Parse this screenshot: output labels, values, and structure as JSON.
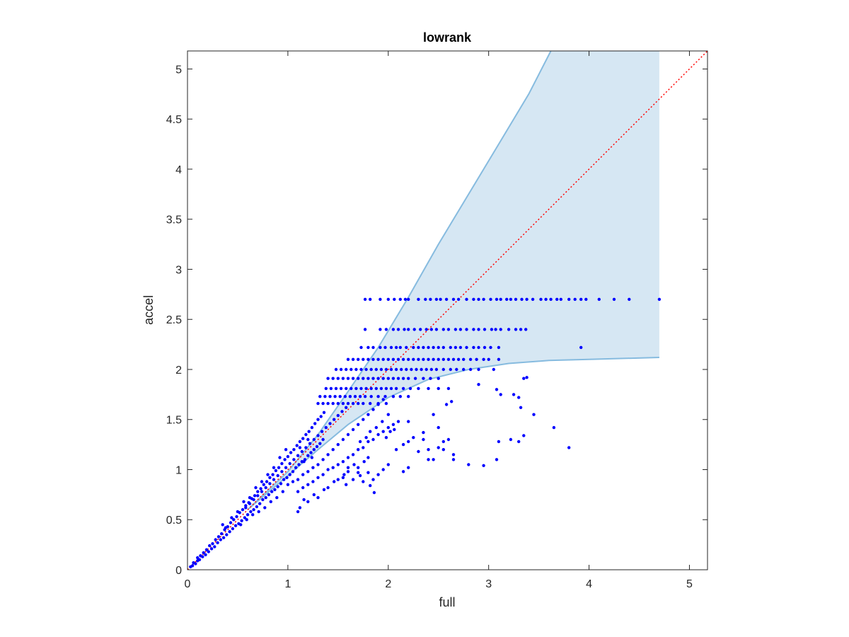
{
  "chart_data": {
    "type": "scatter",
    "title": "lowrank",
    "xlabel": "full",
    "ylabel": "accel",
    "xlim": [
      0,
      5.18
    ],
    "ylim": [
      0,
      5.18
    ],
    "xticks": [
      0,
      1,
      2,
      3,
      4,
      5
    ],
    "xtick_labels": [
      "0",
      "1",
      "2",
      "3",
      "4",
      "5"
    ],
    "yticks": [
      0,
      0.5,
      1,
      1.5,
      2,
      2.5,
      3,
      3.5,
      4,
      4.5,
      5
    ],
    "ytick_labels": [
      "0",
      "0.5",
      "1",
      "1.5",
      "2",
      "2.5",
      "3",
      "3.5",
      "4",
      "4.5",
      "5"
    ],
    "grid": false,
    "colors": {
      "points": "#0000ff",
      "band_fill": "#d6e7f3",
      "band_edge": "#86bbdf",
      "reference_line": "#ff0000",
      "axes": "#262626"
    },
    "band": {
      "upper": [
        [
          0.6,
          0.6
        ],
        [
          1.0,
          0.98
        ],
        [
          1.3,
          1.35
        ],
        [
          1.6,
          1.78
        ],
        [
          1.9,
          2.22
        ],
        [
          2.2,
          2.72
        ],
        [
          2.5,
          3.25
        ],
        [
          2.8,
          3.75
        ],
        [
          3.1,
          4.25
        ],
        [
          3.4,
          4.75
        ],
        [
          3.62,
          5.18
        ]
      ],
      "upper_cap": [
        [
          3.62,
          5.18
        ],
        [
          4.7,
          5.18
        ]
      ],
      "lower": [
        [
          0.6,
          0.6
        ],
        [
          1.0,
          0.94
        ],
        [
          1.3,
          1.2
        ],
        [
          1.6,
          1.45
        ],
        [
          2.0,
          1.72
        ],
        [
          2.4,
          1.9
        ],
        [
          2.8,
          2.0
        ],
        [
          3.2,
          2.06
        ],
        [
          3.6,
          2.09
        ],
        [
          4.0,
          2.1
        ],
        [
          4.7,
          2.12
        ]
      ]
    },
    "reference_line": {
      "from": [
        0,
        0
      ],
      "to": [
        5.18,
        5.18
      ],
      "style": "dotted"
    },
    "stripes": [
      {
        "y": 2.7,
        "xs": [
          1.77,
          1.82,
          1.92,
          2.0,
          2.06,
          2.12,
          2.17,
          2.2,
          2.3,
          2.37,
          2.42,
          2.48,
          2.52,
          2.58,
          2.65,
          2.7,
          2.78,
          2.85,
          2.9,
          2.95,
          3.02,
          3.08,
          3.12,
          3.18,
          3.22,
          3.27,
          3.33,
          3.38,
          3.44,
          3.52,
          3.57,
          3.62,
          3.68,
          3.72,
          3.8,
          3.86,
          3.92,
          3.97,
          4.1,
          4.25,
          4.4,
          4.7
        ]
      },
      {
        "y": 2.4,
        "xs": [
          1.77,
          1.92,
          1.98,
          2.05,
          2.1,
          2.16,
          2.2,
          2.26,
          2.32,
          2.38,
          2.43,
          2.48,
          2.55,
          2.6,
          2.67,
          2.72,
          2.78,
          2.85,
          2.9,
          2.96,
          3.03,
          3.07,
          3.12,
          3.2,
          3.27,
          3.32,
          3.37
        ]
      },
      {
        "y": 2.22,
        "xs": [
          1.73,
          1.8,
          1.85,
          1.92,
          1.97,
          2.03,
          2.08,
          2.12,
          2.18,
          2.25,
          2.3,
          2.35,
          2.4,
          2.45,
          2.5,
          2.55,
          2.62,
          2.67,
          2.72,
          2.78,
          2.85,
          2.9,
          2.96,
          3.02,
          3.1,
          3.92
        ]
      },
      {
        "y": 2.1,
        "xs": [
          1.6,
          1.65,
          1.7,
          1.75,
          1.8,
          1.85,
          1.9,
          1.95,
          2.0,
          2.05,
          2.1,
          2.15,
          2.2,
          2.25,
          2.3,
          2.35,
          2.4,
          2.45,
          2.5,
          2.55,
          2.6,
          2.65,
          2.7,
          2.75,
          2.82,
          2.88,
          2.95,
          3.0,
          3.1
        ]
      },
      {
        "y": 2.0,
        "xs": [
          1.48,
          1.53,
          1.58,
          1.63,
          1.68,
          1.73,
          1.78,
          1.83,
          1.88,
          1.93,
          1.98,
          2.03,
          2.08,
          2.13,
          2.18,
          2.23,
          2.28,
          2.33,
          2.38,
          2.43,
          2.48,
          2.55,
          2.62,
          2.68,
          2.75,
          2.82,
          2.9,
          3.05
        ]
      },
      {
        "y": 1.91,
        "xs": [
          1.4,
          1.45,
          1.5,
          1.55,
          1.6,
          1.65,
          1.7,
          1.75,
          1.8,
          1.85,
          1.9,
          1.95,
          2.0,
          2.05,
          2.1,
          2.15,
          2.2,
          2.27,
          2.35,
          2.42,
          2.5,
          3.35
        ]
      },
      {
        "y": 1.81,
        "xs": [
          1.38,
          1.43,
          1.48,
          1.53,
          1.58,
          1.63,
          1.68,
          1.73,
          1.78,
          1.83,
          1.88,
          1.93,
          1.98,
          2.03,
          2.08,
          2.15,
          2.22,
          2.3,
          2.4,
          2.5,
          2.6
        ]
      },
      {
        "y": 1.73,
        "xs": [
          1.32,
          1.37,
          1.42,
          1.47,
          1.52,
          1.57,
          1.62,
          1.67,
          1.72,
          1.77,
          1.83,
          1.9,
          1.97,
          2.05,
          2.12,
          2.2
        ]
      },
      {
        "y": 1.66,
        "xs": [
          1.3,
          1.35,
          1.4,
          1.45,
          1.5,
          1.55,
          1.6,
          1.65,
          1.7,
          1.75,
          1.82,
          1.9,
          1.98
        ]
      }
    ],
    "points": [
      [
        0.03,
        0.03
      ],
      [
        0.05,
        0.04
      ],
      [
        0.06,
        0.07
      ],
      [
        0.08,
        0.06
      ],
      [
        0.1,
        0.09
      ],
      [
        0.1,
        0.12
      ],
      [
        0.12,
        0.1
      ],
      [
        0.13,
        0.14
      ],
      [
        0.15,
        0.13
      ],
      [
        0.16,
        0.17
      ],
      [
        0.18,
        0.15
      ],
      [
        0.19,
        0.2
      ],
      [
        0.21,
        0.18
      ],
      [
        0.22,
        0.24
      ],
      [
        0.24,
        0.21
      ],
      [
        0.25,
        0.26
      ],
      [
        0.27,
        0.23
      ],
      [
        0.28,
        0.3
      ],
      [
        0.3,
        0.27
      ],
      [
        0.31,
        0.33
      ],
      [
        0.33,
        0.3
      ],
      [
        0.34,
        0.36
      ],
      [
        0.36,
        0.32
      ],
      [
        0.37,
        0.4
      ],
      [
        0.39,
        0.35
      ],
      [
        0.4,
        0.43
      ],
      [
        0.42,
        0.38
      ],
      [
        0.43,
        0.47
      ],
      [
        0.45,
        0.41
      ],
      [
        0.46,
        0.5
      ],
      [
        0.48,
        0.44
      ],
      [
        0.49,
        0.53
      ],
      [
        0.51,
        0.46
      ],
      [
        0.52,
        0.57
      ],
      [
        0.54,
        0.49
      ],
      [
        0.55,
        0.6
      ],
      [
        0.57,
        0.52
      ],
      [
        0.58,
        0.64
      ],
      [
        0.6,
        0.55
      ],
      [
        0.61,
        0.67
      ],
      [
        0.63,
        0.58
      ],
      [
        0.64,
        0.71
      ],
      [
        0.66,
        0.6
      ],
      [
        0.67,
        0.74
      ],
      [
        0.69,
        0.63
      ],
      [
        0.7,
        0.78
      ],
      [
        0.72,
        0.66
      ],
      [
        0.73,
        0.81
      ],
      [
        0.75,
        0.7
      ],
      [
        0.76,
        0.85
      ],
      [
        0.78,
        0.72
      ],
      [
        0.79,
        0.88
      ],
      [
        0.81,
        0.75
      ],
      [
        0.82,
        0.92
      ],
      [
        0.84,
        0.78
      ],
      [
        0.85,
        0.95
      ],
      [
        0.87,
        0.8
      ],
      [
        0.88,
        0.99
      ],
      [
        0.9,
        0.83
      ],
      [
        0.91,
        1.02
      ],
      [
        0.93,
        0.86
      ],
      [
        0.94,
        1.06
      ],
      [
        0.96,
        0.9
      ],
      [
        0.97,
        1.1
      ],
      [
        0.99,
        0.92
      ],
      [
        1.0,
        1.13
      ],
      [
        1.02,
        0.95
      ],
      [
        1.03,
        1.17
      ],
      [
        1.05,
        0.98
      ],
      [
        1.06,
        1.2
      ],
      [
        1.08,
        1.02
      ],
      [
        1.09,
        1.24
      ],
      [
        1.11,
        1.05
      ],
      [
        1.12,
        1.28
      ],
      [
        1.14,
        1.08
      ],
      [
        1.15,
        1.31
      ],
      [
        1.17,
        1.1
      ],
      [
        1.18,
        1.35
      ],
      [
        1.2,
        1.14
      ],
      [
        1.21,
        1.38
      ],
      [
        1.23,
        1.17
      ],
      [
        1.24,
        1.42
      ],
      [
        1.26,
        1.2
      ],
      [
        1.27,
        1.46
      ],
      [
        1.29,
        1.23
      ],
      [
        1.3,
        1.5
      ],
      [
        1.32,
        1.26
      ],
      [
        1.33,
        1.53
      ],
      [
        1.35,
        1.3
      ],
      [
        1.36,
        1.57
      ],
      [
        0.35,
        0.45
      ],
      [
        0.38,
        0.42
      ],
      [
        0.44,
        0.52
      ],
      [
        0.5,
        0.58
      ],
      [
        0.53,
        0.45
      ],
      [
        0.56,
        0.68
      ],
      [
        0.59,
        0.5
      ],
      [
        0.62,
        0.72
      ],
      [
        0.65,
        0.55
      ],
      [
        0.68,
        0.82
      ],
      [
        0.71,
        0.58
      ],
      [
        0.74,
        0.88
      ],
      [
        0.77,
        0.62
      ],
      [
        0.8,
        0.95
      ],
      [
        0.83,
        0.68
      ],
      [
        0.86,
        1.02
      ],
      [
        0.89,
        0.72
      ],
      [
        0.92,
        1.12
      ],
      [
        0.95,
        0.78
      ],
      [
        0.98,
        1.2
      ],
      [
        0.58,
        0.62
      ],
      [
        0.62,
        0.66
      ],
      [
        0.66,
        0.7
      ],
      [
        0.7,
        0.74
      ],
      [
        0.74,
        0.78
      ],
      [
        0.78,
        0.82
      ],
      [
        0.82,
        0.86
      ],
      [
        0.86,
        0.9
      ],
      [
        0.9,
        0.94
      ],
      [
        0.94,
        0.98
      ],
      [
        0.98,
        1.02
      ],
      [
        1.02,
        1.06
      ],
      [
        1.06,
        1.1
      ],
      [
        1.1,
        1.14
      ],
      [
        1.14,
        1.18
      ],
      [
        1.18,
        1.22
      ],
      [
        1.22,
        1.26
      ],
      [
        1.26,
        1.3
      ],
      [
        1.3,
        1.34
      ],
      [
        1.34,
        1.38
      ],
      [
        1.38,
        1.42
      ],
      [
        1.42,
        1.46
      ],
      [
        1.46,
        1.5
      ],
      [
        1.5,
        1.54
      ],
      [
        1.54,
        1.58
      ],
      [
        1.58,
        1.62
      ],
      [
        1.12,
        1.22
      ],
      [
        1.16,
        1.08
      ],
      [
        1.2,
        1.3
      ],
      [
        1.24,
        1.12
      ],
      [
        1.0,
        0.85
      ],
      [
        1.05,
        0.88
      ],
      [
        1.1,
        0.9
      ],
      [
        1.15,
        0.95
      ],
      [
        1.2,
        0.98
      ],
      [
        1.25,
        1.02
      ],
      [
        1.3,
        1.05
      ],
      [
        1.35,
        1.1
      ],
      [
        1.4,
        1.15
      ],
      [
        1.45,
        1.2
      ],
      [
        1.5,
        1.25
      ],
      [
        1.55,
        1.3
      ],
      [
        1.6,
        1.35
      ],
      [
        1.65,
        1.4
      ],
      [
        1.7,
        1.45
      ],
      [
        1.75,
        1.5
      ],
      [
        1.8,
        1.55
      ],
      [
        1.85,
        1.6
      ],
      [
        1.9,
        1.65
      ],
      [
        1.95,
        1.7
      ],
      [
        1.1,
        0.78
      ],
      [
        1.15,
        0.82
      ],
      [
        1.2,
        0.85
      ],
      [
        1.25,
        0.88
      ],
      [
        1.3,
        0.92
      ],
      [
        1.35,
        0.95
      ],
      [
        1.4,
        1.0
      ],
      [
        1.45,
        1.02
      ],
      [
        1.5,
        1.05
      ],
      [
        1.55,
        1.08
      ],
      [
        1.6,
        1.12
      ],
      [
        1.65,
        1.15
      ],
      [
        1.7,
        1.2
      ],
      [
        1.75,
        1.22
      ],
      [
        1.8,
        1.28
      ],
      [
        1.85,
        1.3
      ],
      [
        1.9,
        1.35
      ],
      [
        1.95,
        1.38
      ],
      [
        2.0,
        1.42
      ],
      [
        2.05,
        1.45
      ],
      [
        1.1,
        0.58
      ],
      [
        1.12,
        0.62
      ],
      [
        1.16,
        0.7
      ],
      [
        1.2,
        0.68
      ],
      [
        1.26,
        0.75
      ],
      [
        1.3,
        0.72
      ],
      [
        1.36,
        0.8
      ],
      [
        1.4,
        0.82
      ],
      [
        1.46,
        0.88
      ],
      [
        1.5,
        0.9
      ],
      [
        1.56,
        0.95
      ],
      [
        1.6,
        0.98
      ],
      [
        1.66,
        1.05
      ],
      [
        1.7,
        1.02
      ],
      [
        1.76,
        1.08
      ],
      [
        1.8,
        1.12
      ],
      [
        1.86,
        0.77
      ],
      [
        1.82,
        0.84
      ],
      [
        1.75,
        0.88
      ],
      [
        1.72,
        0.94
      ],
      [
        2.08,
        1.2
      ],
      [
        2.15,
        1.25
      ],
      [
        2.2,
        1.28
      ],
      [
        2.25,
        1.32
      ],
      [
        2.3,
        1.18
      ],
      [
        2.35,
        1.3
      ],
      [
        2.4,
        1.2
      ],
      [
        2.5,
        1.22
      ],
      [
        2.55,
        1.28
      ],
      [
        2.6,
        1.3
      ],
      [
        2.4,
        1.1
      ],
      [
        2.45,
        1.1
      ],
      [
        2.55,
        1.2
      ],
      [
        2.65,
        1.15
      ],
      [
        2.35,
        1.37
      ],
      [
        2.45,
        1.55
      ],
      [
        2.5,
        1.42
      ],
      [
        2.2,
        1.48
      ],
      [
        2.15,
        0.98
      ],
      [
        2.2,
        1.02
      ],
      [
        2.58,
        1.65
      ],
      [
        2.63,
        1.68
      ],
      [
        2.9,
        1.85
      ],
      [
        3.08,
        1.8
      ],
      [
        3.12,
        1.75
      ],
      [
        3.25,
        1.75
      ],
      [
        3.38,
        1.92
      ],
      [
        3.3,
        1.72
      ],
      [
        3.32,
        1.62
      ],
      [
        3.45,
        1.55
      ],
      [
        3.35,
        1.34
      ],
      [
        3.22,
        1.3
      ],
      [
        3.1,
        1.28
      ],
      [
        3.3,
        1.28
      ],
      [
        3.65,
        1.42
      ],
      [
        3.8,
        1.22
      ],
      [
        2.95,
        1.04
      ],
      [
        3.08,
        1.1
      ],
      [
        2.8,
        1.05
      ],
      [
        2.65,
        1.1
      ],
      [
        1.85,
        0.9
      ],
      [
        1.9,
        0.95
      ],
      [
        1.95,
        1.0
      ],
      [
        2.0,
        1.05
      ],
      [
        1.8,
        0.97
      ],
      [
        1.7,
        0.97
      ],
      [
        1.65,
        0.9
      ],
      [
        1.6,
        1.02
      ],
      [
        1.58,
        0.85
      ],
      [
        1.55,
        0.92
      ],
      [
        1.98,
        1.32
      ],
      [
        2.02,
        1.38
      ],
      [
        2.06,
        1.4
      ],
      [
        2.1,
        1.48
      ],
      [
        2.0,
        1.55
      ],
      [
        1.94,
        1.48
      ],
      [
        1.88,
        1.42
      ],
      [
        1.82,
        1.38
      ],
      [
        1.78,
        1.32
      ],
      [
        1.72,
        1.28
      ]
    ]
  }
}
